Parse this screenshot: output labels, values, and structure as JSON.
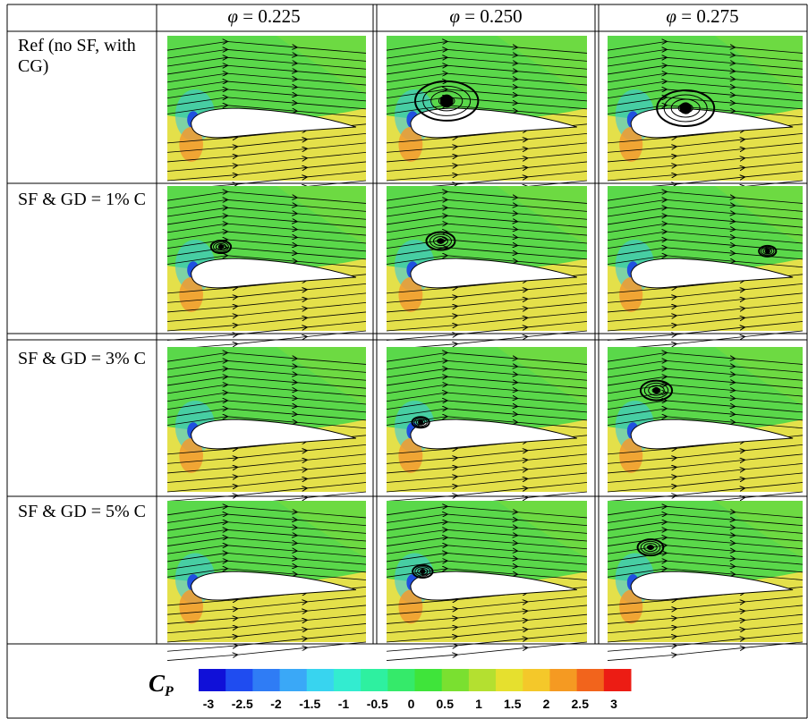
{
  "table": {
    "columns": [
      {
        "symbol": "φ",
        "value": "= 0.225"
      },
      {
        "symbol": "φ",
        "value": "= 0.250"
      },
      {
        "symbol": "φ",
        "value": "= 0.275"
      }
    ],
    "rows": [
      "Ref (no SF, with CG)",
      "SF & GD = 1% C",
      "SF & GD = 3% C",
      "SF & GD = 5% C"
    ]
  },
  "colorbar": {
    "label": "C",
    "subscript": "P",
    "ticks": [
      -3,
      -2.5,
      -2,
      -1.5,
      -1,
      -0.5,
      0,
      0.5,
      1,
      1.5,
      2,
      2.5,
      3
    ],
    "colors": [
      "#1010d8",
      "#1f4cf0",
      "#2f7cf5",
      "#3aa8f7",
      "#38d4ef",
      "#33ecd0",
      "#2ef0a0",
      "#35ea6a",
      "#3fe43a",
      "#7ae030",
      "#b4e030",
      "#e6e02e",
      "#f4c82a",
      "#f59a22",
      "#f2641c",
      "#ec1c14"
    ]
  }
}
